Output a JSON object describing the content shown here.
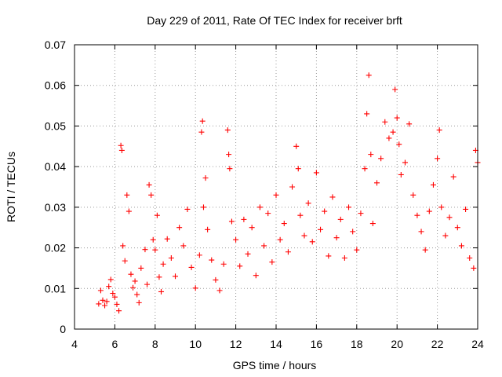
{
  "chart_data": {
    "type": "scatter",
    "title": "Day 229 of 2011, Rate Of TEC Index for receiver brft",
    "xlabel": "GPS time / hours",
    "ylabel": "ROTI / TECUs",
    "xlim": [
      4,
      24
    ],
    "ylim": [
      0,
      0.07
    ],
    "xticks": [
      "4",
      "6",
      "8",
      "10",
      "12",
      "14",
      "16",
      "18",
      "20",
      "22",
      "24"
    ],
    "yticks": [
      "0",
      "0.01",
      "0.02",
      "0.03",
      "0.04",
      "0.05",
      "0.06",
      "0.07"
    ],
    "grid": true,
    "marker": "+",
    "color": "#ff0000",
    "series": [
      {
        "name": "ROTI",
        "points": [
          [
            5.2,
            0.0062
          ],
          [
            5.3,
            0.0095
          ],
          [
            5.4,
            0.0071
          ],
          [
            5.5,
            0.0058
          ],
          [
            5.6,
            0.0068
          ],
          [
            5.7,
            0.0105
          ],
          [
            5.8,
            0.0122
          ],
          [
            5.9,
            0.0088
          ],
          [
            6.0,
            0.0079
          ],
          [
            6.1,
            0.0061
          ],
          [
            6.2,
            0.0045
          ],
          [
            6.3,
            0.0452
          ],
          [
            6.35,
            0.044
          ],
          [
            6.4,
            0.0205
          ],
          [
            6.5,
            0.0168
          ],
          [
            6.6,
            0.033
          ],
          [
            6.7,
            0.029
          ],
          [
            6.8,
            0.0135
          ],
          [
            6.9,
            0.0102
          ],
          [
            7.0,
            0.0118
          ],
          [
            7.1,
            0.0085
          ],
          [
            7.2,
            0.0065
          ],
          [
            7.3,
            0.015
          ],
          [
            7.5,
            0.0196
          ],
          [
            7.6,
            0.011
          ],
          [
            7.7,
            0.0355
          ],
          [
            7.8,
            0.033
          ],
          [
            7.9,
            0.022
          ],
          [
            8.0,
            0.0195
          ],
          [
            8.1,
            0.028
          ],
          [
            8.2,
            0.0128
          ],
          [
            8.3,
            0.0092
          ],
          [
            8.4,
            0.016
          ],
          [
            8.6,
            0.0222
          ],
          [
            8.8,
            0.0175
          ],
          [
            9.0,
            0.013
          ],
          [
            9.2,
            0.025
          ],
          [
            9.4,
            0.0205
          ],
          [
            9.6,
            0.0295
          ],
          [
            9.8,
            0.0152
          ],
          [
            10.0,
            0.0101
          ],
          [
            10.2,
            0.0182
          ],
          [
            10.3,
            0.0485
          ],
          [
            10.35,
            0.0512
          ],
          [
            10.4,
            0.03
          ],
          [
            10.5,
            0.0372
          ],
          [
            10.6,
            0.0245
          ],
          [
            10.8,
            0.017
          ],
          [
            11.0,
            0.0121
          ],
          [
            11.2,
            0.0095
          ],
          [
            11.4,
            0.016
          ],
          [
            11.6,
            0.049
          ],
          [
            11.65,
            0.043
          ],
          [
            11.7,
            0.0395
          ],
          [
            11.8,
            0.0265
          ],
          [
            12.0,
            0.022
          ],
          [
            12.2,
            0.0155
          ],
          [
            12.4,
            0.027
          ],
          [
            12.6,
            0.0185
          ],
          [
            12.8,
            0.025
          ],
          [
            13.0,
            0.0132
          ],
          [
            13.2,
            0.03
          ],
          [
            13.4,
            0.0205
          ],
          [
            13.6,
            0.0285
          ],
          [
            13.8,
            0.0165
          ],
          [
            14.0,
            0.033
          ],
          [
            14.2,
            0.022
          ],
          [
            14.4,
            0.026
          ],
          [
            14.6,
            0.019
          ],
          [
            14.8,
            0.035
          ],
          [
            15.0,
            0.045
          ],
          [
            15.1,
            0.0395
          ],
          [
            15.2,
            0.028
          ],
          [
            15.4,
            0.023
          ],
          [
            15.6,
            0.031
          ],
          [
            15.8,
            0.0215
          ],
          [
            16.0,
            0.0385
          ],
          [
            16.2,
            0.0245
          ],
          [
            16.4,
            0.029
          ],
          [
            16.6,
            0.018
          ],
          [
            16.8,
            0.0325
          ],
          [
            17.0,
            0.0225
          ],
          [
            17.2,
            0.027
          ],
          [
            17.4,
            0.0175
          ],
          [
            17.6,
            0.03
          ],
          [
            17.8,
            0.024
          ],
          [
            18.0,
            0.0195
          ],
          [
            18.2,
            0.0285
          ],
          [
            18.4,
            0.0395
          ],
          [
            18.5,
            0.053
          ],
          [
            18.6,
            0.0625
          ],
          [
            18.7,
            0.043
          ],
          [
            18.8,
            0.026
          ],
          [
            19.0,
            0.036
          ],
          [
            19.2,
            0.042
          ],
          [
            19.4,
            0.051
          ],
          [
            19.6,
            0.047
          ],
          [
            19.8,
            0.0485
          ],
          [
            19.9,
            0.059
          ],
          [
            20.0,
            0.052
          ],
          [
            20.1,
            0.0455
          ],
          [
            20.2,
            0.038
          ],
          [
            20.4,
            0.041
          ],
          [
            20.6,
            0.0505
          ],
          [
            20.8,
            0.033
          ],
          [
            21.0,
            0.028
          ],
          [
            21.2,
            0.024
          ],
          [
            21.4,
            0.0195
          ],
          [
            21.6,
            0.029
          ],
          [
            21.8,
            0.0355
          ],
          [
            22.0,
            0.042
          ],
          [
            22.1,
            0.049
          ],
          [
            22.2,
            0.03
          ],
          [
            22.4,
            0.023
          ],
          [
            22.6,
            0.0275
          ],
          [
            22.8,
            0.0375
          ],
          [
            23.0,
            0.025
          ],
          [
            23.2,
            0.0205
          ],
          [
            23.4,
            0.0295
          ],
          [
            23.6,
            0.0175
          ],
          [
            23.8,
            0.015
          ],
          [
            23.9,
            0.044
          ],
          [
            24.0,
            0.041
          ]
        ]
      }
    ]
  }
}
